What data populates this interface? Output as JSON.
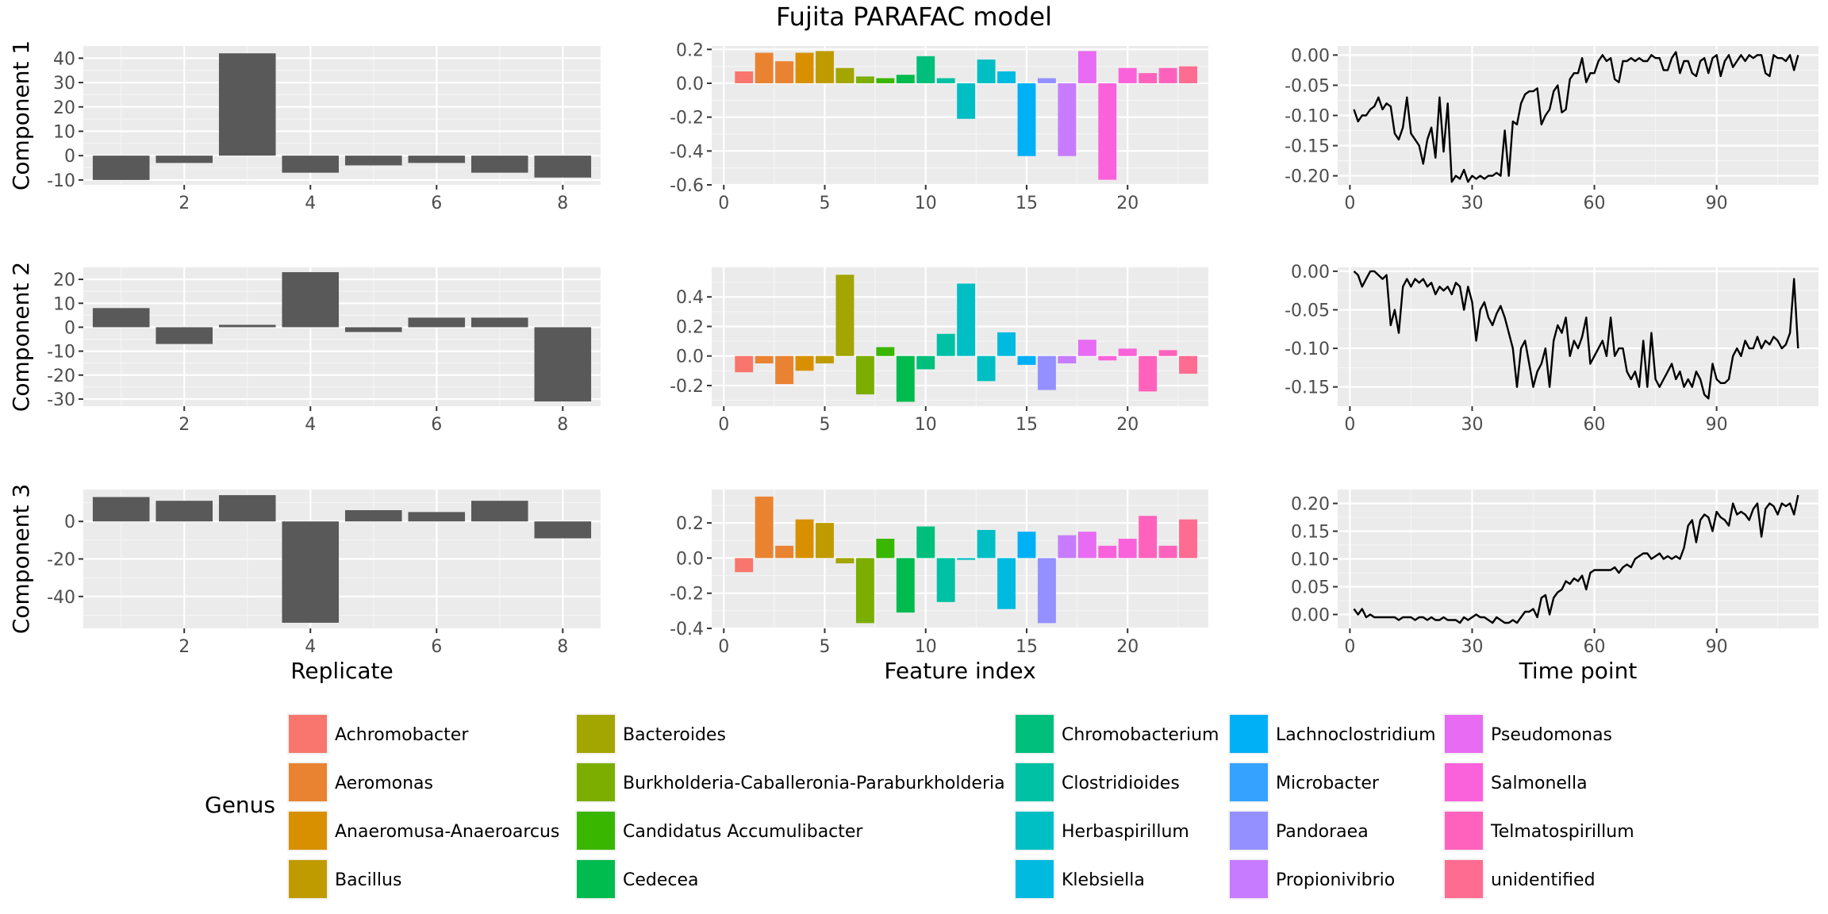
{
  "title": "Fujita PARAFAC model",
  "legend": {
    "title": "Genus",
    "entries": [
      {
        "label": "Achromobacter",
        "color": "#F8766D"
      },
      {
        "label": "Aeromonas",
        "color": "#EA8331"
      },
      {
        "label": "Anaeromusa-Anaeroarcus",
        "color": "#D89000"
      },
      {
        "label": "Bacillus",
        "color": "#C09B00"
      },
      {
        "label": "Bacteroides",
        "color": "#A3A500"
      },
      {
        "label": "Burkholderia-Caballeronia-Paraburkholderia",
        "color": "#7CAE00"
      },
      {
        "label": "Candidatus Accumulibacter",
        "color": "#39B600"
      },
      {
        "label": "Cedecea",
        "color": "#00BB4E"
      },
      {
        "label": "Chromobacterium",
        "color": "#00BF7D"
      },
      {
        "label": "Clostridioides",
        "color": "#00C1A3"
      },
      {
        "label": "Herbaspirillum",
        "color": "#00BFC4"
      },
      {
        "label": "Klebsiella",
        "color": "#00BAE0"
      },
      {
        "label": "Lachnoclostridium",
        "color": "#00B0F6"
      },
      {
        "label": "Microbacter",
        "color": "#35A2FF"
      },
      {
        "label": "Pandoraea",
        "color": "#9590FF"
      },
      {
        "label": "Propionivibrio",
        "color": "#C77CFF"
      },
      {
        "label": "Pseudomonas",
        "color": "#E76BF3"
      },
      {
        "label": "Salmonella",
        "color": "#FA62DB"
      },
      {
        "label": "Telmatospirillum",
        "color": "#FF62BC"
      },
      {
        "label": "unidentified",
        "color": "#FF6C91"
      }
    ]
  },
  "chart_data": [
    {
      "type": "bar",
      "component": "Component 1",
      "column": "Replicate",
      "x": [
        1,
        2,
        3,
        4,
        5,
        6,
        7,
        8
      ],
      "values": [
        -10,
        -3,
        42,
        -7,
        -4,
        -3,
        -7,
        -9
      ],
      "ylim": [
        -12,
        45
      ],
      "yticks": [
        -10,
        0,
        10,
        20,
        30,
        40
      ],
      "ytick_labels": [
        "-10",
        "0",
        "10",
        "20",
        "30",
        "40"
      ],
      "xticks": [
        2,
        4,
        6,
        8
      ],
      "xtick_labels": [
        "2",
        "4",
        "6",
        "8"
      ],
      "xlim": [
        0.4,
        8.6
      ],
      "ylabel": "Component 1",
      "xlabel": "",
      "color": "#595959",
      "grid": true
    },
    {
      "type": "bar",
      "component": "Component 1",
      "column": "Feature index",
      "x": [
        1,
        2,
        3,
        4,
        5,
        6,
        7,
        8,
        9,
        10,
        11,
        12,
        13,
        14,
        15,
        16,
        17,
        18,
        19,
        20,
        21,
        22,
        23
      ],
      "values": [
        0.07,
        0.18,
        0.13,
        0.18,
        0.19,
        0.09,
        0.04,
        0.03,
        0.05,
        0.16,
        0.03,
        -0.21,
        0.14,
        0.07,
        -0.43,
        0.03,
        -0.43,
        0.19,
        -0.57,
        0.09,
        0.06,
        0.09,
        0.1
      ],
      "genus": [
        0,
        1,
        1,
        2,
        3,
        4,
        5,
        6,
        7,
        8,
        9,
        10,
        10,
        11,
        12,
        14,
        15,
        16,
        17,
        17,
        18,
        18,
        19
      ],
      "ylim": [
        -0.6,
        0.22
      ],
      "yticks": [
        -0.6,
        -0.4,
        -0.2,
        0.0,
        0.2
      ],
      "ytick_labels": [
        "-0.6",
        "-0.4",
        "-0.2",
        "0.0",
        "0.2"
      ],
      "xticks": [
        0,
        5,
        10,
        15,
        20
      ],
      "xtick_labels": [
        "0",
        "5",
        "10",
        "15",
        "20"
      ],
      "xlim": [
        -0.6,
        24.0
      ],
      "xlabel": "",
      "grid": true
    },
    {
      "type": "line",
      "component": "Component 1",
      "column": "Time point",
      "x": [
        1,
        2,
        3,
        4,
        5,
        6,
        7,
        8,
        9,
        10,
        11,
        12,
        13,
        14,
        15,
        16,
        17,
        18,
        19,
        20,
        21,
        22,
        23,
        24,
        25,
        26,
        27,
        28,
        29,
        30,
        31,
        32,
        33,
        34,
        35,
        36,
        37,
        38,
        39,
        40,
        41,
        42,
        43,
        44,
        45,
        46,
        47,
        48,
        49,
        50,
        51,
        52,
        53,
        54,
        55,
        56,
        57,
        58,
        59,
        60,
        61,
        62,
        63,
        64,
        65,
        66,
        67,
        68,
        69,
        70,
        71,
        72,
        73,
        74,
        75,
        76,
        77,
        78,
        79,
        80,
        81,
        82,
        83,
        84,
        85,
        86,
        87,
        88,
        89,
        90,
        91,
        92,
        93,
        94,
        95,
        96,
        97,
        98,
        99,
        100,
        101,
        102,
        103,
        104,
        105,
        106,
        107,
        108,
        109,
        110
      ],
      "values": [
        -0.09,
        -0.11,
        -0.1,
        -0.1,
        -0.09,
        -0.085,
        -0.07,
        -0.09,
        -0.08,
        -0.085,
        -0.13,
        -0.14,
        -0.12,
        -0.07,
        -0.13,
        -0.14,
        -0.15,
        -0.18,
        -0.14,
        -0.12,
        -0.17,
        -0.07,
        -0.16,
        -0.08,
        -0.21,
        -0.2,
        -0.205,
        -0.19,
        -0.21,
        -0.2,
        -0.205,
        -0.2,
        -0.205,
        -0.2,
        -0.2,
        -0.195,
        -0.2,
        -0.125,
        -0.2,
        -0.11,
        -0.115,
        -0.08,
        -0.065,
        -0.06,
        -0.06,
        -0.055,
        -0.115,
        -0.1,
        -0.09,
        -0.06,
        -0.05,
        -0.095,
        -0.09,
        -0.04,
        -0.03,
        -0.03,
        -0.005,
        -0.045,
        -0.03,
        -0.03,
        -0.01,
        0.0,
        -0.01,
        -0.005,
        -0.04,
        -0.045,
        -0.01,
        -0.01,
        -0.005,
        -0.01,
        -0.005,
        -0.01,
        -0.01,
        0.0,
        -0.005,
        -0.005,
        -0.025,
        -0.025,
        -0.005,
        0.005,
        -0.03,
        -0.01,
        -0.01,
        -0.03,
        -0.035,
        -0.01,
        -0.005,
        -0.03,
        -0.005,
        0.0,
        -0.035,
        -0.01,
        0.0,
        -0.02,
        -0.01,
        0.0,
        -0.01,
        0.0,
        -0.005,
        0.0,
        0.0,
        -0.03,
        -0.035,
        0.0,
        -0.005,
        -0.005,
        -0.01,
        0.0,
        -0.025,
        0.0
      ],
      "ylim": [
        -0.215,
        0.015
      ],
      "yticks": [
        -0.2,
        -0.15,
        -0.1,
        -0.05,
        0.0
      ],
      "ytick_labels": [
        "-0.20",
        "-0.15",
        "-0.10",
        "-0.05",
        "0.00"
      ],
      "xticks": [
        0,
        30,
        60,
        90
      ],
      "xtick_labels": [
        "0",
        "30",
        "60",
        "90"
      ],
      "xlim": [
        -3.0,
        115.0
      ],
      "xlabel": "",
      "color": "#000000",
      "grid": true
    },
    {
      "type": "bar",
      "component": "Component 2",
      "column": "Replicate",
      "x": [
        1,
        2,
        3,
        4,
        5,
        6,
        7,
        8
      ],
      "values": [
        8,
        -7,
        1,
        23,
        -2,
        4,
        4,
        -31
      ],
      "ylim": [
        -33,
        25
      ],
      "yticks": [
        -30,
        -20,
        -10,
        0,
        10,
        20
      ],
      "ytick_labels": [
        "-30",
        "-20",
        "-10",
        "0",
        "10",
        "20"
      ],
      "xticks": [
        2,
        4,
        6,
        8
      ],
      "xtick_labels": [
        "2",
        "4",
        "6",
        "8"
      ],
      "xlim": [
        0.4,
        8.6
      ],
      "ylabel": "Component 2",
      "xlabel": "",
      "color": "#595959",
      "grid": true
    },
    {
      "type": "bar",
      "component": "Component 2",
      "column": "Feature index",
      "x": [
        1,
        2,
        3,
        4,
        5,
        6,
        7,
        8,
        9,
        10,
        11,
        12,
        13,
        14,
        15,
        16,
        17,
        18,
        19,
        20,
        21,
        22,
        23
      ],
      "values": [
        -0.11,
        -0.05,
        -0.19,
        -0.1,
        -0.05,
        0.55,
        -0.26,
        0.06,
        -0.31,
        -0.09,
        0.15,
        0.49,
        -0.17,
        0.16,
        -0.06,
        -0.23,
        -0.05,
        0.11,
        -0.03,
        0.05,
        -0.24,
        0.04,
        -0.12
      ],
      "genus": [
        0,
        1,
        1,
        2,
        3,
        4,
        5,
        6,
        7,
        8,
        9,
        10,
        10,
        11,
        12,
        14,
        15,
        16,
        17,
        17,
        18,
        18,
        19
      ],
      "ylim": [
        -0.34,
        0.6
      ],
      "yticks": [
        -0.2,
        0.0,
        0.2,
        0.4
      ],
      "ytick_labels": [
        "-0.2",
        "0.0",
        "0.2",
        "0.4"
      ],
      "xticks": [
        0,
        5,
        10,
        15,
        20
      ],
      "xtick_labels": [
        "0",
        "5",
        "10",
        "15",
        "20"
      ],
      "xlim": [
        -0.6,
        24.0
      ],
      "xlabel": "",
      "grid": true
    },
    {
      "type": "line",
      "component": "Component 2",
      "column": "Time point",
      "x": [
        1,
        2,
        3,
        4,
        5,
        6,
        7,
        8,
        9,
        10,
        11,
        12,
        13,
        14,
        15,
        16,
        17,
        18,
        19,
        20,
        21,
        22,
        23,
        24,
        25,
        26,
        27,
        28,
        29,
        30,
        31,
        32,
        33,
        34,
        35,
        36,
        37,
        38,
        39,
        40,
        41,
        42,
        43,
        44,
        45,
        46,
        47,
        48,
        49,
        50,
        51,
        52,
        53,
        54,
        55,
        56,
        57,
        58,
        59,
        60,
        61,
        62,
        63,
        64,
        65,
        66,
        67,
        68,
        69,
        70,
        71,
        72,
        73,
        74,
        75,
        76,
        77,
        78,
        79,
        80,
        81,
        82,
        83,
        84,
        85,
        86,
        87,
        88,
        89,
        90,
        91,
        92,
        93,
        94,
        95,
        96,
        97,
        98,
        99,
        100,
        101,
        102,
        103,
        104,
        105,
        106,
        107,
        108,
        109,
        110
      ],
      "values": [
        0.0,
        -0.005,
        -0.02,
        -0.01,
        0.0,
        0.0,
        -0.005,
        -0.01,
        -0.005,
        -0.07,
        -0.05,
        -0.08,
        -0.02,
        -0.01,
        -0.02,
        -0.01,
        -0.015,
        -0.01,
        -0.02,
        -0.015,
        -0.03,
        -0.02,
        -0.025,
        -0.02,
        -0.03,
        -0.015,
        -0.02,
        -0.05,
        -0.02,
        -0.04,
        -0.09,
        -0.05,
        -0.04,
        -0.06,
        -0.07,
        -0.055,
        -0.045,
        -0.06,
        -0.08,
        -0.1,
        -0.15,
        -0.1,
        -0.09,
        -0.12,
        -0.15,
        -0.13,
        -0.12,
        -0.1,
        -0.15,
        -0.09,
        -0.07,
        -0.08,
        -0.06,
        -0.11,
        -0.09,
        -0.1,
        -0.085,
        -0.06,
        -0.12,
        -0.11,
        -0.1,
        -0.09,
        -0.11,
        -0.06,
        -0.11,
        -0.1,
        -0.1,
        -0.13,
        -0.14,
        -0.13,
        -0.15,
        -0.09,
        -0.15,
        -0.08,
        -0.14,
        -0.15,
        -0.14,
        -0.13,
        -0.12,
        -0.14,
        -0.13,
        -0.15,
        -0.14,
        -0.15,
        -0.13,
        -0.14,
        -0.16,
        -0.165,
        -0.12,
        -0.14,
        -0.145,
        -0.145,
        -0.14,
        -0.11,
        -0.1,
        -0.11,
        -0.09,
        -0.1,
        -0.1,
        -0.085,
        -0.1,
        -0.09,
        -0.095,
        -0.085,
        -0.09,
        -0.1,
        -0.095,
        -0.08,
        -0.01,
        -0.1
      ],
      "ylim": [
        -0.175,
        0.005
      ],
      "yticks": [
        -0.15,
        -0.1,
        -0.05,
        0.0
      ],
      "ytick_labels": [
        "-0.15",
        "-0.10",
        "-0.05",
        "0.00"
      ],
      "xticks": [
        0,
        30,
        60,
        90
      ],
      "xtick_labels": [
        "0",
        "30",
        "60",
        "90"
      ],
      "xlim": [
        -3.0,
        115.0
      ],
      "xlabel": "",
      "color": "#000000",
      "grid": true
    },
    {
      "type": "bar",
      "component": "Component 3",
      "column": "Replicate",
      "x": [
        1,
        2,
        3,
        4,
        5,
        6,
        7,
        8
      ],
      "values": [
        13,
        11,
        14,
        -54,
        6,
        5,
        11,
        -9
      ],
      "ylim": [
        -57,
        17
      ],
      "yticks": [
        -40,
        -20,
        0
      ],
      "ytick_labels": [
        "-40",
        "-20",
        "0"
      ],
      "xticks": [
        2,
        4,
        6,
        8
      ],
      "xtick_labels": [
        "2",
        "4",
        "6",
        "8"
      ],
      "xlim": [
        0.4,
        8.6
      ],
      "ylabel": "Component 3",
      "xlabel": "Replicate",
      "color": "#595959",
      "grid": true
    },
    {
      "type": "bar",
      "component": "Component 3",
      "column": "Feature index",
      "x": [
        1,
        2,
        3,
        4,
        5,
        6,
        7,
        8,
        9,
        10,
        11,
        12,
        13,
        14,
        15,
        16,
        17,
        18,
        19,
        20,
        21,
        22,
        23
      ],
      "values": [
        -0.08,
        0.35,
        0.07,
        0.22,
        0.2,
        -0.03,
        -0.37,
        0.11,
        -0.31,
        0.18,
        -0.25,
        -0.01,
        0.16,
        -0.29,
        0.15,
        -0.37,
        0.13,
        0.15,
        0.07,
        0.11,
        0.24,
        0.07,
        0.22
      ],
      "genus": [
        0,
        1,
        1,
        2,
        3,
        4,
        5,
        6,
        7,
        8,
        9,
        10,
        10,
        11,
        12,
        14,
        15,
        16,
        17,
        17,
        18,
        18,
        19
      ],
      "ylim": [
        -0.4,
        0.39
      ],
      "yticks": [
        -0.4,
        -0.2,
        0.0,
        0.2
      ],
      "ytick_labels": [
        "-0.4",
        "-0.2",
        "0.0",
        "0.2"
      ],
      "xticks": [
        0,
        5,
        10,
        15,
        20
      ],
      "xtick_labels": [
        "0",
        "5",
        "10",
        "15",
        "20"
      ],
      "xlim": [
        -0.6,
        24.0
      ],
      "xlabel": "Feature index",
      "grid": true
    },
    {
      "type": "line",
      "component": "Component 3",
      "column": "Time point",
      "x": [
        1,
        2,
        3,
        4,
        5,
        6,
        7,
        8,
        9,
        10,
        11,
        12,
        13,
        14,
        15,
        16,
        17,
        18,
        19,
        20,
        21,
        22,
        23,
        24,
        25,
        26,
        27,
        28,
        29,
        30,
        31,
        32,
        33,
        34,
        35,
        36,
        37,
        38,
        39,
        40,
        41,
        42,
        43,
        44,
        45,
        46,
        47,
        48,
        49,
        50,
        51,
        52,
        53,
        54,
        55,
        56,
        57,
        58,
        59,
        60,
        61,
        62,
        63,
        64,
        65,
        66,
        67,
        68,
        69,
        70,
        71,
        72,
        73,
        74,
        75,
        76,
        77,
        78,
        79,
        80,
        81,
        82,
        83,
        84,
        85,
        86,
        87,
        88,
        89,
        90,
        91,
        92,
        93,
        94,
        95,
        96,
        97,
        98,
        99,
        100,
        101,
        102,
        103,
        104,
        105,
        106,
        107,
        108,
        109,
        110
      ],
      "values": [
        0.01,
        0.0,
        0.01,
        -0.005,
        0.0,
        -0.005,
        -0.005,
        -0.005,
        -0.005,
        -0.005,
        -0.005,
        -0.01,
        -0.005,
        -0.005,
        -0.005,
        -0.01,
        -0.005,
        -0.005,
        -0.01,
        -0.005,
        -0.01,
        -0.01,
        -0.005,
        -0.01,
        -0.01,
        -0.01,
        -0.015,
        -0.005,
        -0.01,
        -0.005,
        0.0,
        -0.005,
        -0.005,
        -0.01,
        -0.015,
        -0.005,
        -0.01,
        -0.015,
        -0.015,
        -0.01,
        -0.015,
        -0.005,
        0.005,
        0.005,
        0.01,
        -0.005,
        0.03,
        0.035,
        0.0,
        0.03,
        0.04,
        0.045,
        0.06,
        0.055,
        0.065,
        0.06,
        0.07,
        0.045,
        0.075,
        0.08,
        0.08,
        0.08,
        0.08,
        0.08,
        0.085,
        0.075,
        0.085,
        0.09,
        0.085,
        0.1,
        0.105,
        0.11,
        0.11,
        0.1,
        0.105,
        0.11,
        0.1,
        0.105,
        0.1,
        0.105,
        0.1,
        0.12,
        0.16,
        0.17,
        0.13,
        0.17,
        0.18,
        0.175,
        0.15,
        0.185,
        0.175,
        0.17,
        0.16,
        0.2,
        0.18,
        0.185,
        0.18,
        0.17,
        0.19,
        0.2,
        0.14,
        0.19,
        0.2,
        0.195,
        0.18,
        0.2,
        0.195,
        0.2,
        0.18,
        0.215
      ],
      "ylim": [
        -0.025,
        0.225
      ],
      "yticks": [
        0.0,
        0.05,
        0.1,
        0.15,
        0.2
      ],
      "ytick_labels": [
        "0.00",
        "0.05",
        "0.10",
        "0.15",
        "0.20"
      ],
      "xticks": [
        0,
        30,
        60,
        90
      ],
      "xtick_labels": [
        "0",
        "30",
        "60",
        "90"
      ],
      "xlim": [
        -3.0,
        115.0
      ],
      "xlabel": "Time point",
      "color": "#000000",
      "grid": true
    }
  ]
}
